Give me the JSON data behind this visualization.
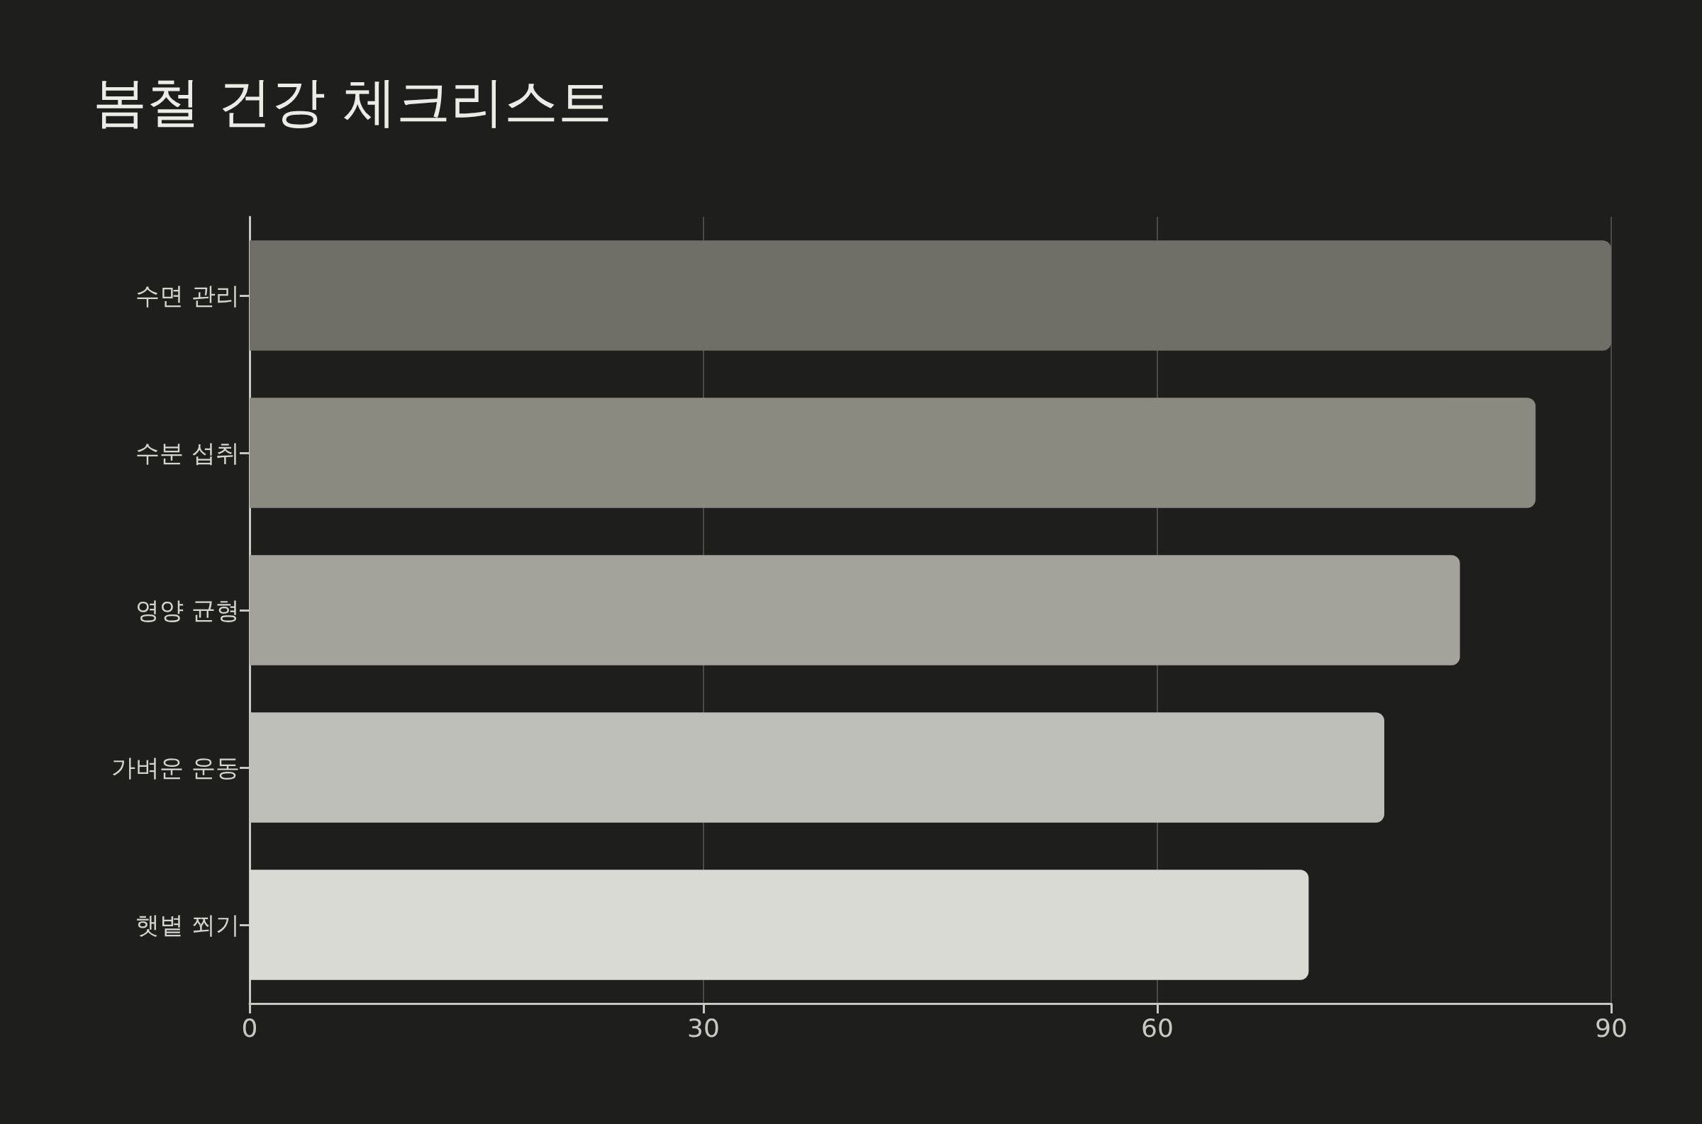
{
  "chart_data": {
    "type": "bar",
    "orientation": "horizontal",
    "title": "봄철 건강 체크리스트",
    "categories": [
      "수면 관리",
      "수분 섭취",
      "영양 균형",
      "가벼운 운동",
      "햇볕 쬐기"
    ],
    "values": [
      90,
      85,
      80,
      75,
      70
    ],
    "colors": [
      "#6f6f67",
      "#8a8a81",
      "#a3a39c",
      "#bfbfba",
      "#dadad5"
    ],
    "xlim": [
      0,
      90
    ],
    "xticks": [
      0,
      30,
      60,
      90
    ],
    "grid": "x"
  }
}
